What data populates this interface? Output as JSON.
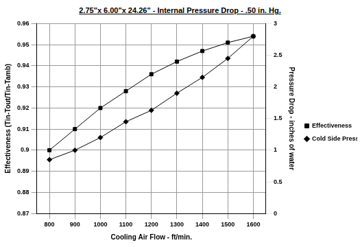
{
  "chart_data": {
    "type": "line",
    "title": "2.75\"x 6.00\"x 24.26\" - Internal Pressure Drop - .50 in. Hg.",
    "x_label": "Cooling Air Flow - ft/min.",
    "y_label": "Effectiveness (Tin-Tout/Tin-Tamb)",
    "y2_label": "Pressure Drop - inches of water",
    "categories": [
      800,
      900,
      1000,
      1100,
      1200,
      1300,
      1400,
      1500,
      1600
    ],
    "series": [
      {
        "name": "Effectiveness",
        "color": "#000000",
        "marker": "square",
        "line_style": "solid",
        "values": [
          0.9,
          0.91,
          0.92,
          0.928,
          0.936,
          0.942,
          0.947,
          0.951,
          0.954
        ]
      },
      {
        "name": "Cold Side Pressure Drop",
        "color": "#000000",
        "marker": "diamond",
        "line_style": "solid",
        "axis": "y2",
        "values": [
          0.85,
          1.0,
          1.2,
          1.45,
          1.63,
          1.9,
          2.15,
          2.45,
          2.8
        ]
      }
    ],
    "ylim": [
      0.87,
      0.96
    ],
    "yticks": [
      0.87,
      0.88,
      0.89,
      0.9,
      0.91,
      0.92,
      0.93,
      0.94,
      0.95,
      0.96
    ],
    "y2lim": [
      0,
      3
    ],
    "y2ticks": [
      0,
      0.5,
      1,
      1.5,
      2,
      2.5,
      3
    ],
    "grid": true,
    "legend": "right"
  }
}
